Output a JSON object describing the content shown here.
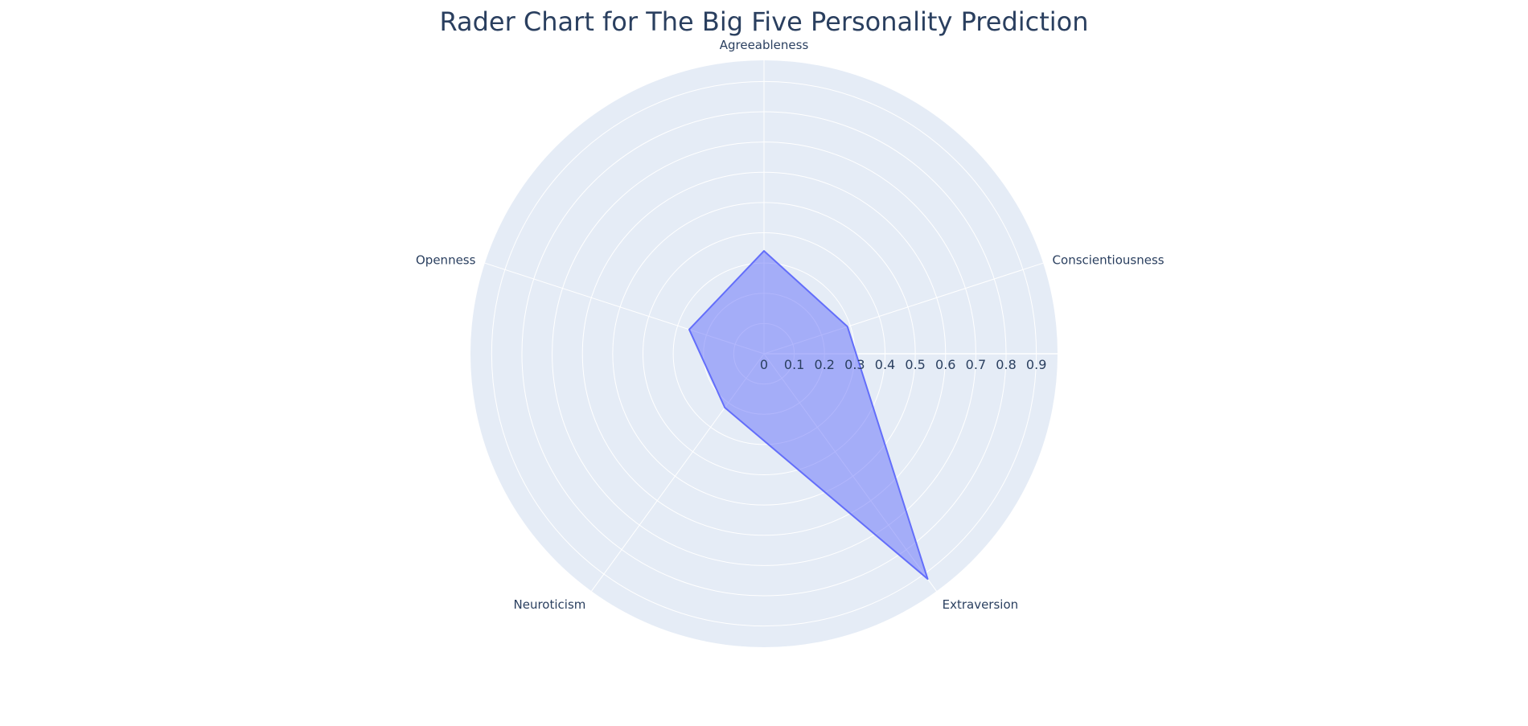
{
  "chart_data": {
    "type": "radar",
    "title": "Rader Chart for The Big Five Personality Prediction",
    "categories": [
      "Agreeableness",
      "Conscientiousness",
      "Extraversion",
      "Neuroticism",
      "Openness"
    ],
    "values": [
      0.34,
      0.29,
      0.92,
      0.22,
      0.26
    ],
    "radial_ticks": [
      "0",
      "0.1",
      "0.2",
      "0.3",
      "0.4",
      "0.5",
      "0.6",
      "0.7",
      "0.8",
      "0.9"
    ],
    "radial_range": [
      0,
      0.97
    ],
    "grid": true,
    "colors": {
      "fill": "#636efa",
      "line": "#636efa",
      "polar_bg": "#e5ecf6",
      "grid": "#ffffff",
      "text": "#2a3f5f"
    }
  }
}
